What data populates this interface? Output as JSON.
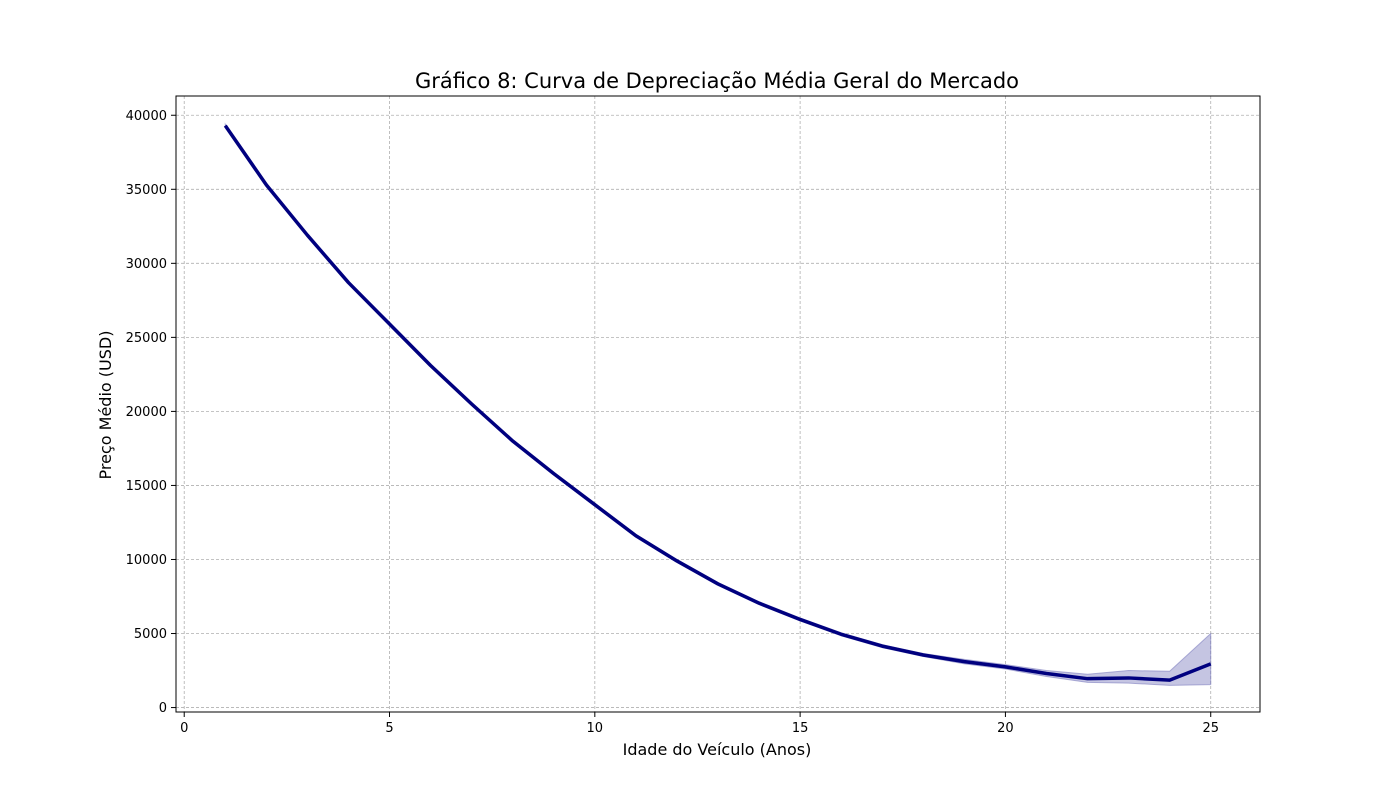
{
  "chart_data": {
    "type": "line",
    "title": "Gráfico 8: Curva de Depreciação Média Geral do Mercado",
    "xlabel": "Idade do Veículo (Anos)",
    "ylabel": "Preço Médio (USD)",
    "xlim": [
      -0.2,
      26.2
    ],
    "ylim": [
      -300,
      41300
    ],
    "xticks": [
      0,
      5,
      10,
      15,
      20,
      25
    ],
    "yticks": [
      0,
      5000,
      10000,
      15000,
      20000,
      25000,
      30000,
      35000,
      40000
    ],
    "grid": true,
    "legend": "none",
    "series": [
      {
        "color": "#00007f",
        "band_color": "#7f7fbf",
        "x": [
          1,
          2,
          3,
          4,
          5,
          6,
          7,
          8,
          9,
          10,
          11,
          12,
          13,
          14,
          15,
          16,
          17,
          18,
          19,
          20,
          21,
          22,
          23,
          24,
          25
        ],
        "y": [
          39300,
          35300,
          31900,
          28700,
          25900,
          23100,
          20500,
          18000,
          15800,
          13700,
          11600,
          9900,
          8350,
          7050,
          5950,
          4950,
          4150,
          3550,
          3100,
          2750,
          2300,
          1950,
          2000,
          1850,
          2950
        ],
        "ci_low": [
          39200,
          35200,
          31800,
          28600,
          25800,
          23000,
          20400,
          17900,
          15700,
          13600,
          11500,
          9800,
          8250,
          6950,
          5850,
          4850,
          4050,
          3450,
          2950,
          2600,
          2100,
          1700,
          1650,
          1500,
          1550
        ],
        "ci_high": [
          39400,
          35400,
          32000,
          28800,
          26000,
          23200,
          20600,
          18100,
          15900,
          13800,
          11700,
          10000,
          8450,
          7150,
          6050,
          5050,
          4250,
          3650,
          3250,
          2900,
          2500,
          2250,
          2500,
          2450,
          5000
        ]
      }
    ]
  }
}
